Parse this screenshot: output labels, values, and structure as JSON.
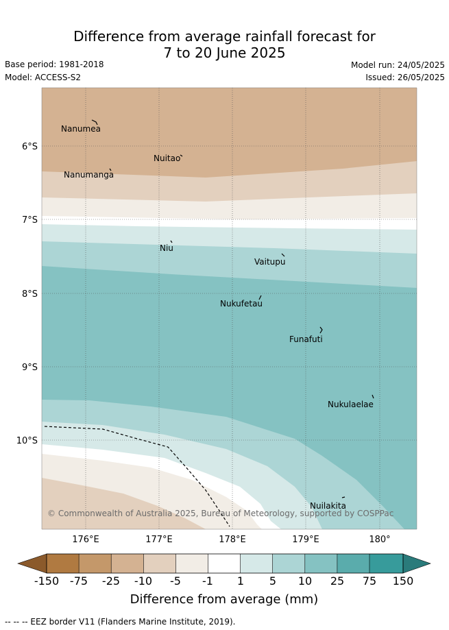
{
  "header": {
    "title_line1": "Difference from average rainfall forecast for",
    "title_line2": "7 to 20 June 2025",
    "base_period": "Base period: 1981-2018",
    "model": "Model: ACCESS-S2",
    "model_run": "Model run: 24/05/2025",
    "issued": "Issued: 26/05/2025"
  },
  "map": {
    "lat_labels": [
      "6°S",
      "7°S",
      "8°S",
      "9°S",
      "10°S"
    ],
    "lon_labels": [
      "176°E",
      "177°E",
      "178°E",
      "179°E",
      "180°"
    ],
    "places": [
      "Nanumea",
      "Nuitao",
      "Nanumanga",
      "Niu",
      "Vaitupu",
      "Nukufetau",
      "Funafuti",
      "Nukulaelae",
      "Nuilakita"
    ],
    "copyright": "© Commonwealth of Australia 2025, Bureau of Meteorology, supported by COSPPac"
  },
  "legend": {
    "ticks": [
      "-150",
      "-75",
      "-25",
      "-10",
      "-5",
      "-1",
      "1",
      "5",
      "10",
      "25",
      "75",
      "150"
    ],
    "colors": [
      "#8b5a2b",
      "#b07a41",
      "#c4986a",
      "#d4b292",
      "#e3d0be",
      "#f2ede6",
      "#ffffff",
      "#d6e9e8",
      "#acd5d5",
      "#85c2c2",
      "#5aacac",
      "#379b9b",
      "#2a7b7b"
    ],
    "label": "Difference from average (mm)"
  },
  "footer": {
    "eez": "--  --  -- EEZ border V11 (Flanders Marine Institute, 2019)."
  }
}
